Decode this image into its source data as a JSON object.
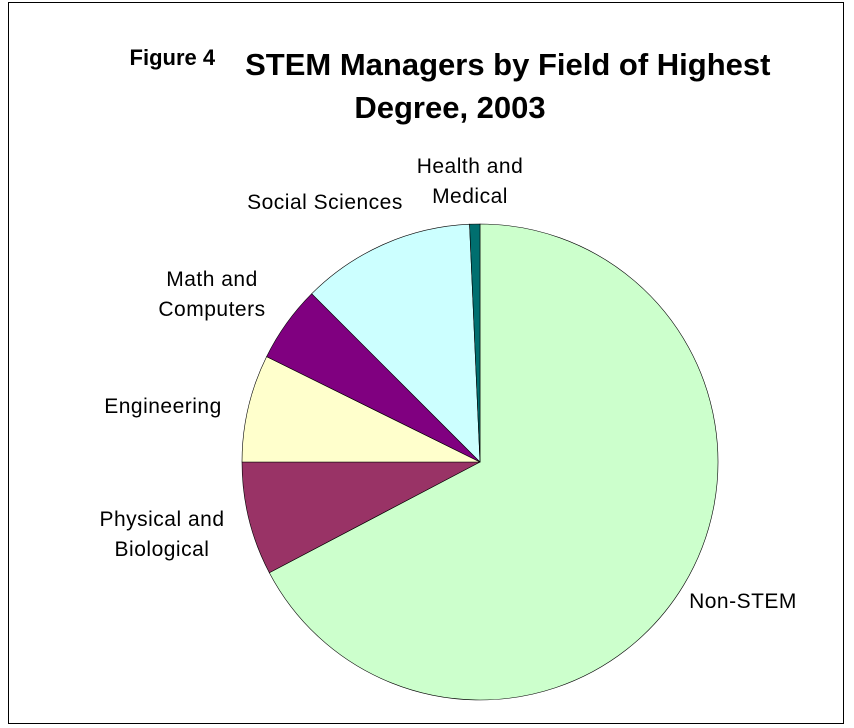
{
  "chart_data": {
    "type": "pie",
    "figure_label": "Figure 4",
    "title": "STEM Managers by Field of Highest Degree, 2003",
    "categories": [
      "Non-STEM",
      "Physical and Biological",
      "Engineering",
      "Math and Computers",
      "Social Sciences",
      "Health and Medical"
    ],
    "values": [
      67.3,
      7.7,
      7.3,
      5.2,
      11.8,
      0.7
    ],
    "colors": [
      "#ccffcc",
      "#993366",
      "#ffffcc",
      "#800080",
      "#ccffff",
      "#006f6f"
    ]
  }
}
